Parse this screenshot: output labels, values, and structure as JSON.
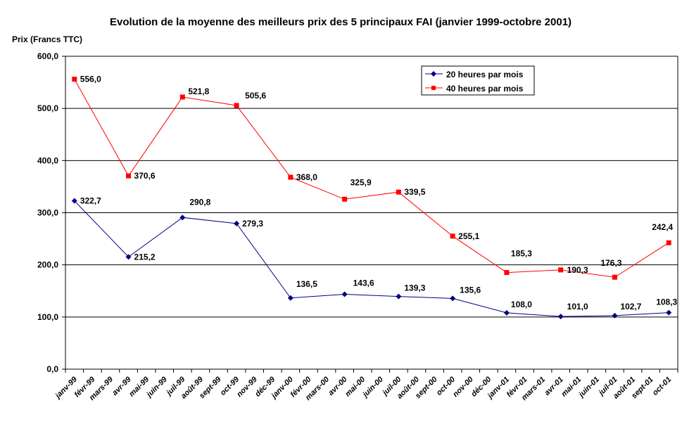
{
  "chart_data": {
    "type": "line",
    "title": "Evolution de la moyenne des meilleurs prix des 5 principaux FAI (janvier 1999-octobre 2001)",
    "ylabel": "Prix (Francs TTC)",
    "xlabel": "",
    "ylim": [
      0,
      600
    ],
    "yticks": [
      "0,0",
      "100,0",
      "200,0",
      "300,0",
      "400,0",
      "500,0",
      "600,0"
    ],
    "grid": true,
    "legend_position": "top-right",
    "categories": [
      "janv-99",
      "févr-99",
      "mars-99",
      "avr-99",
      "mai-99",
      "juin-99",
      "juil-99",
      "août-99",
      "sept-99",
      "oct-99",
      "nov-99",
      "déc-99",
      "janv-00",
      "févr-00",
      "mars-00",
      "avr-00",
      "mai-00",
      "juin-00",
      "juil-00",
      "août-00",
      "sept-00",
      "oct-00",
      "nov-00",
      "déc-00",
      "janv-01",
      "févr-01",
      "mars-01",
      "avr-01",
      "mai-01",
      "juin-01",
      "juil-01",
      "août-01",
      "sept-01",
      "oct-01"
    ],
    "series": [
      {
        "name": "20 heures par mois",
        "color": "#000080",
        "marker": "diamond",
        "x": [
          "janv-99",
          "avr-99",
          "juil-99",
          "oct-99",
          "janv-00",
          "avr-00",
          "juil-00",
          "oct-00",
          "janv-01",
          "avr-01",
          "juil-01",
          "oct-01"
        ],
        "values": [
          322.7,
          215.2,
          290.8,
          279.3,
          136.5,
          143.6,
          139.3,
          135.6,
          108.0,
          101.0,
          102.7,
          108.3
        ],
        "labels": [
          "322,7",
          "215,2",
          "290,8",
          "279,3",
          "136,5",
          "143,6",
          "139,3",
          "135,6",
          "108,0",
          "101,0",
          "102,7",
          "108,3"
        ]
      },
      {
        "name": "40 heures par mois",
        "color": "#FF0000",
        "marker": "square",
        "x": [
          "janv-99",
          "avr-99",
          "juil-99",
          "oct-99",
          "janv-00",
          "avr-00",
          "juil-00",
          "oct-00",
          "janv-01",
          "avr-01",
          "juil-01",
          "oct-01"
        ],
        "values": [
          556.0,
          370.6,
          521.8,
          505.6,
          368.0,
          325.9,
          339.5,
          255.1,
          185.3,
          190.3,
          176.3,
          242.4
        ],
        "labels": [
          "556,0",
          "370,6",
          "521,8",
          "505,6",
          "368,0",
          "325,9",
          "339,5",
          "255,1",
          "185,3",
          "190,3",
          "176,3",
          "242,4"
        ]
      }
    ]
  }
}
